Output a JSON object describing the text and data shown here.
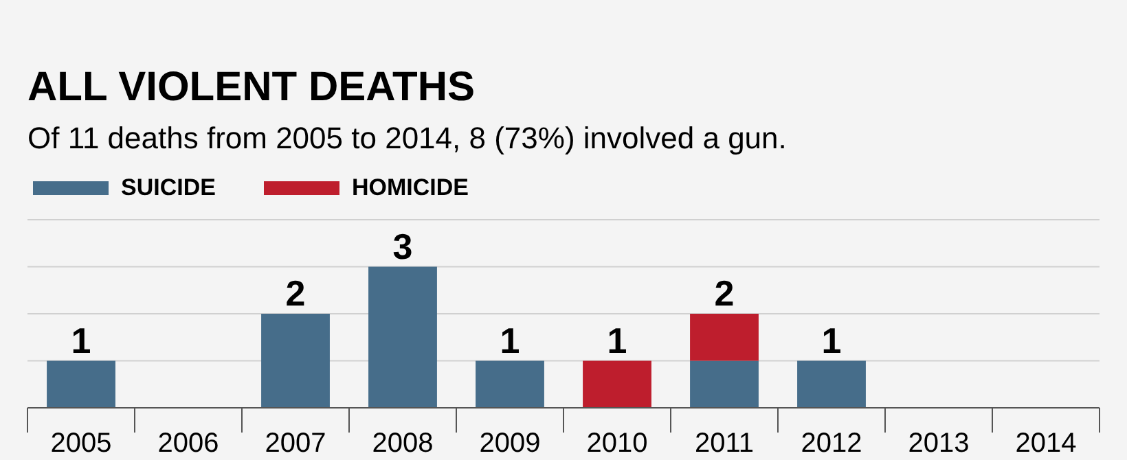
{
  "chart_data": {
    "type": "bar",
    "title": "ALL VIOLENT DEATHS",
    "subtitle": "Of 11 deaths from 2005 to 2014, 8 (73%) involved a gun.",
    "categories": [
      "2005",
      "2006",
      "2007",
      "2008",
      "2009",
      "2010",
      "2011",
      "2012",
      "2013",
      "2014"
    ],
    "series": [
      {
        "name": "SUICIDE",
        "color": "#466d8a",
        "values": [
          1,
          null,
          2,
          3,
          1,
          null,
          1,
          1,
          null,
          null
        ],
        "value_labels": [
          "1",
          null,
          "2",
          "3",
          "1",
          null,
          null,
          "1",
          null,
          null
        ]
      },
      {
        "name": "HOMICIDE",
        "color": "#be1e2d",
        "values": [
          null,
          null,
          null,
          null,
          null,
          1,
          1,
          null,
          null,
          null
        ],
        "value_labels": [
          null,
          null,
          null,
          null,
          null,
          "1",
          null,
          null,
          null,
          null
        ]
      }
    ],
    "stacked": true,
    "totals": [
      null,
      null,
      null,
      null,
      null,
      null,
      "2",
      null,
      null,
      null
    ],
    "ylim": [
      0,
      4
    ],
    "yticks": [
      {
        "value": 0,
        "label": null
      },
      {
        "value": 1,
        "label": null
      },
      {
        "value": 2,
        "label": null
      },
      {
        "value": 3,
        "label": null
      },
      {
        "value": 4,
        "label": null
      }
    ],
    "tick_labels": "x",
    "grid": "y",
    "legend": "top left"
  }
}
